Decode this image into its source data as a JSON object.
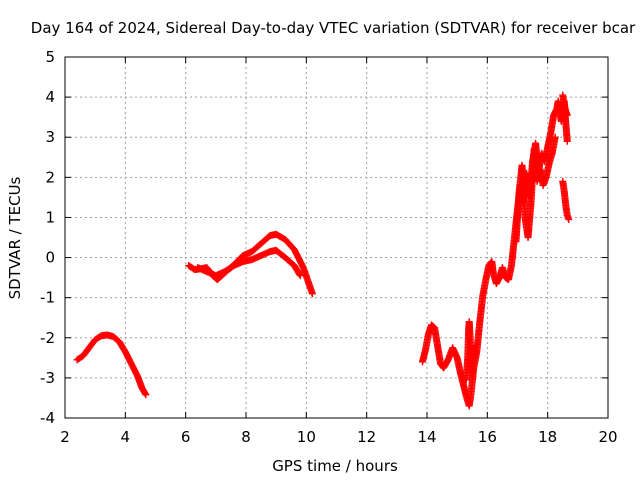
{
  "chart_data": {
    "type": "scatter",
    "title": "Day 164 of 2024, Sidereal Day-to-day VTEC variation (SDTVAR) for receiver bcar",
    "xlabel": "GPS time / hours",
    "ylabel": "SDTVAR / TECUs",
    "xlim": [
      2,
      20
    ],
    "ylim": [
      -4,
      5
    ],
    "xticks": [
      "2",
      "4",
      "6",
      "8",
      "10",
      "12",
      "14",
      "16",
      "18",
      "20"
    ],
    "yticks": [
      "-4",
      "-3",
      "-2",
      "-1",
      "0",
      "1",
      "2",
      "3",
      "4",
      "5"
    ],
    "grid": true,
    "marker": "plus",
    "series": [
      {
        "name": "SDTVAR",
        "color": "#ff0000",
        "segments": [
          [
            [
              2.4,
              -2.55
            ],
            [
              2.6,
              -2.45
            ],
            [
              2.8,
              -2.25
            ],
            [
              3.0,
              -2.05
            ],
            [
              3.2,
              -1.95
            ],
            [
              3.4,
              -1.93
            ],
            [
              3.6,
              -1.97
            ],
            [
              3.8,
              -2.1
            ],
            [
              4.0,
              -2.35
            ],
            [
              4.2,
              -2.65
            ],
            [
              4.4,
              -2.95
            ],
            [
              4.55,
              -3.25
            ],
            [
              4.68,
              -3.42
            ]
          ],
          [
            [
              6.1,
              -0.2
            ],
            [
              6.3,
              -0.3
            ],
            [
              6.5,
              -0.28
            ],
            [
              6.7,
              -0.25
            ],
            [
              6.9,
              -0.45
            ],
            [
              7.05,
              -0.55
            ],
            [
              7.3,
              -0.38
            ],
            [
              7.6,
              -0.18
            ],
            [
              7.9,
              0.05
            ],
            [
              8.2,
              0.15
            ],
            [
              8.5,
              0.35
            ],
            [
              8.8,
              0.55
            ],
            [
              9.0,
              0.58
            ],
            [
              9.3,
              0.45
            ],
            [
              9.6,
              0.2
            ],
            [
              9.9,
              -0.25
            ],
            [
              10.2,
              -0.9
            ]
          ],
          [
            [
              6.4,
              -0.25
            ],
            [
              6.7,
              -0.35
            ],
            [
              7.0,
              -0.45
            ],
            [
              7.3,
              -0.35
            ],
            [
              7.6,
              -0.2
            ],
            [
              7.9,
              -0.1
            ],
            [
              8.2,
              -0.05
            ],
            [
              8.5,
              0.05
            ],
            [
              8.8,
              0.15
            ],
            [
              9.0,
              0.18
            ],
            [
              9.3,
              0.0
            ],
            [
              9.6,
              -0.2
            ],
            [
              9.8,
              -0.45
            ]
          ],
          [
            [
              13.85,
              -2.6
            ],
            [
              13.95,
              -2.3
            ],
            [
              14.05,
              -1.9
            ],
            [
              14.15,
              -1.68
            ],
            [
              14.25,
              -1.75
            ],
            [
              14.35,
              -2.2
            ],
            [
              14.45,
              -2.65
            ],
            [
              14.55,
              -2.75
            ],
            [
              14.7,
              -2.55
            ],
            [
              14.85,
              -2.25
            ],
            [
              15.0,
              -2.5
            ],
            [
              15.1,
              -2.85
            ],
            [
              15.2,
              -3.15
            ],
            [
              15.3,
              -3.45
            ],
            [
              15.4,
              -3.7
            ],
            [
              15.45,
              -3.45
            ],
            [
              15.55,
              -2.75
            ],
            [
              15.65,
              -2.35
            ],
            [
              15.75,
              -1.6
            ],
            [
              15.85,
              -0.95
            ],
            [
              15.95,
              -0.55
            ],
            [
              16.05,
              -0.2
            ],
            [
              16.15,
              -0.1
            ],
            [
              16.2,
              -0.4
            ],
            [
              16.3,
              -0.65
            ],
            [
              16.4,
              -0.5
            ],
            [
              16.5,
              -0.25
            ],
            [
              16.6,
              -0.5
            ],
            [
              16.7,
              -0.55
            ],
            [
              16.8,
              -0.2
            ],
            [
              16.9,
              0.5
            ],
            [
              17.0,
              1.2
            ],
            [
              17.1,
              1.8
            ],
            [
              17.2,
              1.35
            ],
            [
              17.3,
              2.1
            ],
            [
              17.4,
              1.5
            ],
            [
              17.5,
              2.4
            ],
            [
              17.6,
              2.85
            ],
            [
              17.7,
              2.15
            ],
            [
              17.8,
              2.6
            ],
            [
              17.9,
              2.4
            ],
            [
              18.0,
              2.75
            ],
            [
              18.1,
              3.1
            ],
            [
              18.2,
              3.55
            ],
            [
              18.3,
              3.7
            ],
            [
              18.35,
              3.9
            ],
            [
              18.45,
              3.4
            ],
            [
              18.55,
              3.9
            ],
            [
              18.6,
              3.35
            ],
            [
              18.65,
              2.9
            ]
          ],
          [
            [
              16.95,
              0.4
            ],
            [
              17.05,
              1.6
            ],
            [
              17.15,
              2.3
            ],
            [
              17.25,
              1.0
            ],
            [
              17.35,
              0.5
            ],
            [
              17.45,
              1.4
            ],
            [
              17.55,
              2.7
            ],
            [
              17.65,
              1.9
            ],
            [
              17.75,
              2.2
            ],
            [
              17.85,
              1.8
            ],
            [
              17.95,
              2.0
            ],
            [
              18.05,
              2.35
            ],
            [
              18.15,
              2.6
            ],
            [
              18.25,
              3.0
            ]
          ],
          [
            [
              15.3,
              -3.05
            ],
            [
              15.35,
              -2.5
            ],
            [
              15.38,
              -1.8
            ],
            [
              15.4,
              -1.6
            ],
            [
              15.5,
              -2.9
            ],
            [
              15.6,
              -2.2
            ]
          ],
          [
            [
              18.5,
              4.05
            ],
            [
              18.55,
              3.8
            ],
            [
              18.6,
              3.65
            ],
            [
              18.65,
              3.55
            ],
            [
              18.6,
              3.6
            ]
          ],
          [
            [
              18.5,
              1.9
            ],
            [
              18.55,
              1.65
            ],
            [
              18.6,
              1.3
            ],
            [
              18.65,
              1.05
            ],
            [
              18.7,
              0.95
            ]
          ]
        ]
      }
    ]
  }
}
